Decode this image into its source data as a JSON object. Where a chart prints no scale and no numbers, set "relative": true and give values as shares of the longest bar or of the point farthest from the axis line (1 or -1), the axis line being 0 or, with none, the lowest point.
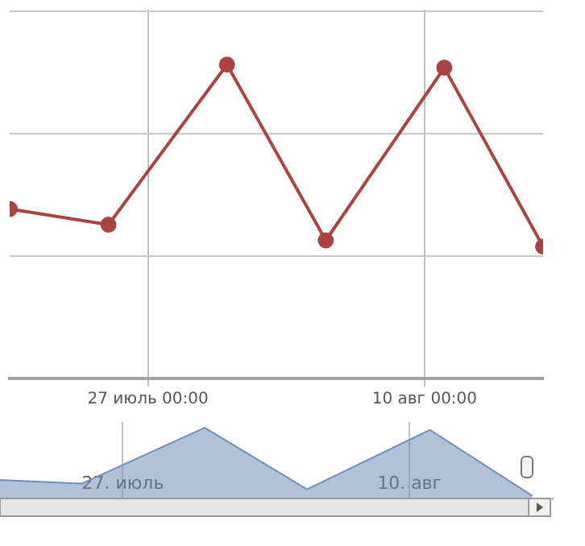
{
  "chart_data": [
    {
      "type": "line",
      "relative": true,
      "x": [
        "--07-20",
        "--07-25",
        "--07-31",
        "--08-05",
        "--08-11",
        "--08-16"
      ],
      "series": [
        {
          "color": "#a94442",
          "values": [
            0.54,
            0.49,
            1,
            0.44,
            0.99,
            0.42
          ]
        }
      ],
      "xlim": [
        "--07-20",
        "--08-16"
      ],
      "xticks": [
        {
          "value": "--07-27",
          "label": "27 июль 00:00"
        },
        {
          "value": "--08-10",
          "label": "10 авг 00:00"
        }
      ],
      "ref_lines": [
        {
          "axis": "y",
          "value": 0.39,
          "color": "#c8c8c8"
        },
        {
          "axis": "y",
          "value": 0.78,
          "color": "#c8c8c8"
        },
        {
          "axis": "y",
          "value": 1.17,
          "color": "#c8c8c8"
        }
      ],
      "grid": "x",
      "legend": false,
      "marker": "circle",
      "tick_labels": "x"
    },
    {
      "type": "area",
      "relative": true,
      "x": [
        "--07-21",
        "--07-25",
        "--07-31",
        "--08-05",
        "--08-11",
        "--08-16"
      ],
      "series": [
        {
          "color": "#6f8fb8",
          "values": [
            0.27,
            0.22,
            1,
            0.14,
            0.97,
            0.05
          ]
        }
      ],
      "xlim": [
        "--07-21",
        "--08-17"
      ],
      "xticks": [
        {
          "value": "--07-27",
          "label": "27. июль"
        },
        {
          "value": "--08-10",
          "label": "10. авг"
        }
      ],
      "grid": "x",
      "legend": false,
      "marker": "none",
      "tick_labels": "x"
    }
  ]
}
